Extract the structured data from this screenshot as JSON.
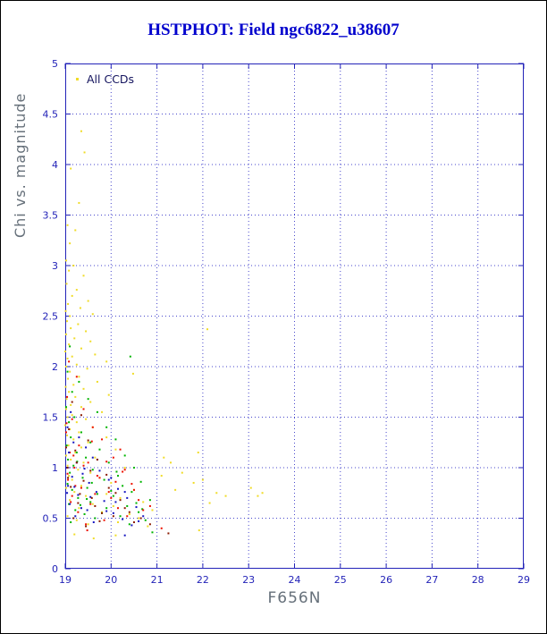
{
  "title": {
    "text": "HSTPHOT: Field ngc6822_u38607",
    "color": "#0000cd"
  },
  "legend": {
    "label": "All CCDs",
    "marker_color": "#f0dc28",
    "text_color": "#14145e"
  },
  "chart_data": {
    "type": "scatter",
    "title": "HSTPHOT: Field ngc6822_u38607",
    "xlabel": "F656N",
    "ylabel": "Chi vs. magnitude",
    "xlim": [
      19,
      29
    ],
    "ylim": [
      0,
      5
    ],
    "x_ticks": [
      19,
      20,
      21,
      22,
      23,
      24,
      25,
      26,
      27,
      28,
      29
    ],
    "y_ticks": [
      0,
      0.5,
      1,
      1.5,
      2,
      2.5,
      3,
      3.5,
      4,
      4.5,
      5
    ],
    "grid": true,
    "axis_color": "#2323b8",
    "grid_color": "#4646cc",
    "tick_label_color": "#2323b8",
    "label_color": "#66707a",
    "legend_position": "top-left",
    "legend_entries": [
      {
        "label": "All CCDs",
        "color": "#f0dc28"
      }
    ],
    "series": [
      {
        "name": "ccd-yellow",
        "color": "#f0dc28",
        "points": [
          [
            19.35,
            4.33
          ],
          [
            19.42,
            4.12
          ],
          [
            19.12,
            3.96
          ],
          [
            19.3,
            3.62
          ],
          [
            19.05,
            3.4
          ],
          [
            19.22,
            3.35
          ],
          [
            19.1,
            3.22
          ],
          [
            19.02,
            3.05
          ],
          [
            19.18,
            3.0
          ],
          [
            19.08,
            2.95
          ],
          [
            19.4,
            2.9
          ],
          [
            19.03,
            2.82
          ],
          [
            19.25,
            2.76
          ],
          [
            19.15,
            2.7
          ],
          [
            19.5,
            2.65
          ],
          [
            19.06,
            2.62
          ],
          [
            19.33,
            2.58
          ],
          [
            19.01,
            2.55
          ],
          [
            19.6,
            2.52
          ],
          [
            19.1,
            2.5
          ],
          [
            19.04,
            2.45
          ],
          [
            19.28,
            2.42
          ],
          [
            19.12,
            2.38
          ],
          [
            22.1,
            2.37
          ],
          [
            19.45,
            2.35
          ],
          [
            19.02,
            2.32
          ],
          [
            19.2,
            2.28
          ],
          [
            19.55,
            2.25
          ],
          [
            19.08,
            2.22
          ],
          [
            19.35,
            2.18
          ],
          [
            19.0,
            2.15
          ],
          [
            19.65,
            2.12
          ],
          [
            19.15,
            2.1
          ],
          [
            19.05,
            2.08
          ],
          [
            19.9,
            2.05
          ],
          [
            19.25,
            2.02
          ],
          [
            19.02,
            2.0
          ],
          [
            19.48,
            1.98
          ],
          [
            19.1,
            1.95
          ],
          [
            20.48,
            1.93
          ],
          [
            19.3,
            1.9
          ],
          [
            19.06,
            1.88
          ],
          [
            19.7,
            1.85
          ],
          [
            19.18,
            1.82
          ],
          [
            19.01,
            1.8
          ],
          [
            19.4,
            1.78
          ],
          [
            19.08,
            1.75
          ],
          [
            19.95,
            1.72
          ],
          [
            19.22,
            1.7
          ],
          [
            19.03,
            1.68
          ],
          [
            19.55,
            1.65
          ],
          [
            19.12,
            1.62
          ],
          [
            19.35,
            1.6
          ],
          [
            19.02,
            1.58
          ],
          [
            19.8,
            1.55
          ],
          [
            19.15,
            1.52
          ],
          [
            19.05,
            1.5
          ],
          [
            19.45,
            1.48
          ],
          [
            19.25,
            1.45
          ],
          [
            19.0,
            1.42
          ],
          [
            19.6,
            1.4
          ],
          [
            19.1,
            1.38
          ],
          [
            19.3,
            1.35
          ],
          [
            19.04,
            1.32
          ],
          [
            19.9,
            1.3
          ],
          [
            19.18,
            1.28
          ],
          [
            19.5,
            1.25
          ],
          [
            19.07,
            1.22
          ],
          [
            19.35,
            1.2
          ],
          [
            20.1,
            1.18
          ],
          [
            19.22,
            1.15
          ],
          [
            19.02,
            1.12
          ],
          [
            19.65,
            1.1
          ],
          [
            19.12,
            1.08
          ],
          [
            19.4,
            1.05
          ],
          [
            19.05,
            1.02
          ],
          [
            20.3,
            1.0
          ],
          [
            19.28,
            0.98
          ],
          [
            19.55,
            0.95
          ],
          [
            19.08,
            0.92
          ],
          [
            19.75,
            0.9
          ],
          [
            19.15,
            0.88
          ],
          [
            20.0,
            0.85
          ],
          [
            19.35,
            0.82
          ],
          [
            19.02,
            0.8
          ],
          [
            20.5,
            0.78
          ],
          [
            19.2,
            0.76
          ],
          [
            19.9,
            0.74
          ],
          [
            19.45,
            0.72
          ],
          [
            20.2,
            0.7
          ],
          [
            19.1,
            0.68
          ],
          [
            20.7,
            0.66
          ],
          [
            19.6,
            0.64
          ],
          [
            20.05,
            0.62
          ],
          [
            19.3,
            0.6
          ],
          [
            20.9,
            0.58
          ],
          [
            19.8,
            0.56
          ],
          [
            20.4,
            0.54
          ],
          [
            19.05,
            0.52
          ],
          [
            20.6,
            0.5
          ],
          [
            19.25,
            0.48
          ],
          [
            20.15,
            0.46
          ],
          [
            19.5,
            0.44
          ],
          [
            20.8,
            0.42
          ],
          [
            19.2,
            0.34
          ],
          [
            20.1,
            0.33
          ],
          [
            19.62,
            0.3
          ],
          [
            21.3,
            1.05
          ],
          [
            21.55,
            0.95
          ],
          [
            21.8,
            0.85
          ],
          [
            22.0,
            0.88
          ],
          [
            22.3,
            0.75
          ],
          [
            22.5,
            0.72
          ],
          [
            23.05,
            0.8
          ],
          [
            23.3,
            0.75
          ],
          [
            21.15,
            1.1
          ],
          [
            21.4,
            0.78
          ],
          [
            22.15,
            0.65
          ],
          [
            21.9,
            1.15
          ],
          [
            21.1,
            0.92
          ],
          [
            23.2,
            0.72
          ],
          [
            21.92,
            0.38
          ]
        ]
      },
      {
        "name": "ccd-green",
        "color": "#00b400",
        "points": [
          [
            19.1,
            2.2
          ],
          [
            20.42,
            2.1
          ],
          [
            19.05,
            1.95
          ],
          [
            19.3,
            1.85
          ],
          [
            19.15,
            1.75
          ],
          [
            19.5,
            1.68
          ],
          [
            19.02,
            1.6
          ],
          [
            19.7,
            1.55
          ],
          [
            19.2,
            1.5
          ],
          [
            19.08,
            1.45
          ],
          [
            19.9,
            1.4
          ],
          [
            19.35,
            1.35
          ],
          [
            19.12,
            1.3
          ],
          [
            20.1,
            1.28
          ],
          [
            19.55,
            1.25
          ],
          [
            19.03,
            1.22
          ],
          [
            19.75,
            1.18
          ],
          [
            19.25,
            1.15
          ],
          [
            20.3,
            1.12
          ],
          [
            19.45,
            1.1
          ],
          [
            19.06,
            1.08
          ],
          [
            19.95,
            1.05
          ],
          [
            19.18,
            1.02
          ],
          [
            20.5,
            1.0
          ],
          [
            19.6,
            0.98
          ],
          [
            19.1,
            0.95
          ],
          [
            20.15,
            0.92
          ],
          [
            19.38,
            0.9
          ],
          [
            19.85,
            0.88
          ],
          [
            20.65,
            0.86
          ],
          [
            19.05,
            0.84
          ],
          [
            20.25,
            0.82
          ],
          [
            19.48,
            0.8
          ],
          [
            19.15,
            0.78
          ],
          [
            20.45,
            0.76
          ],
          [
            19.7,
            0.74
          ],
          [
            20.05,
            0.72
          ],
          [
            19.28,
            0.7
          ],
          [
            20.85,
            0.68
          ],
          [
            19.55,
            0.66
          ],
          [
            19.08,
            0.64
          ],
          [
            20.35,
            0.62
          ],
          [
            19.9,
            0.6
          ],
          [
            19.22,
            0.58
          ],
          [
            20.6,
            0.56
          ],
          [
            19.42,
            0.54
          ],
          [
            20.2,
            0.52
          ],
          [
            19.65,
            0.5
          ],
          [
            20.75,
            0.48
          ],
          [
            19.12,
            0.46
          ],
          [
            20.4,
            0.44
          ],
          [
            19.8,
            0.55
          ],
          [
            20.55,
            0.65
          ],
          [
            19.33,
            0.63
          ],
          [
            20.0,
            0.77
          ],
          [
            19.58,
            0.85
          ],
          [
            20.12,
            0.96
          ],
          [
            19.26,
            1.06
          ],
          [
            20.68,
            0.59
          ],
          [
            19.47,
            0.69
          ],
          [
            20.9,
            0.36
          ]
        ]
      },
      {
        "name": "ccd-red",
        "color": "#ee1100",
        "points": [
          [
            19.08,
            2.05
          ],
          [
            19.25,
            1.9
          ],
          [
            19.04,
            1.7
          ],
          [
            19.4,
            1.58
          ],
          [
            19.15,
            1.48
          ],
          [
            19.6,
            1.4
          ],
          [
            19.02,
            1.35
          ],
          [
            19.8,
            1.28
          ],
          [
            19.3,
            1.22
          ],
          [
            19.1,
            1.15
          ],
          [
            20.05,
            1.1
          ],
          [
            19.5,
            1.05
          ],
          [
            19.2,
            1.0
          ],
          [
            20.25,
            0.96
          ],
          [
            19.7,
            0.92
          ],
          [
            19.06,
            0.88
          ],
          [
            20.45,
            0.84
          ],
          [
            19.35,
            0.8
          ],
          [
            19.95,
            0.76
          ],
          [
            19.15,
            0.72
          ],
          [
            20.6,
            0.68
          ],
          [
            19.55,
            0.64
          ],
          [
            20.15,
            0.6
          ],
          [
            19.28,
            0.56
          ],
          [
            20.35,
            0.52
          ],
          [
            19.85,
            0.48
          ],
          [
            19.45,
            0.44
          ],
          [
            20.7,
            0.58
          ],
          [
            19.12,
            0.66
          ],
          [
            20.0,
            0.7
          ],
          [
            19.65,
            0.74
          ],
          [
            20.5,
            0.78
          ],
          [
            19.22,
            0.82
          ],
          [
            20.1,
            0.86
          ],
          [
            19.75,
            0.9
          ],
          [
            19.05,
            0.94
          ],
          [
            20.3,
            0.98
          ],
          [
            19.4,
            1.02
          ],
          [
            19.9,
            1.06
          ],
          [
            19.18,
            1.12
          ],
          [
            20.2,
            1.18
          ],
          [
            19.58,
            1.26
          ],
          [
            19.03,
            1.44
          ],
          [
            19.48,
            0.38
          ],
          [
            20.85,
            0.62
          ],
          [
            21.1,
            0.4
          ]
        ]
      },
      {
        "name": "ccd-blue",
        "color": "#1515c0",
        "points": [
          [
            19.12,
            1.55
          ],
          [
            19.05,
            1.4
          ],
          [
            19.3,
            1.3
          ],
          [
            19.18,
            1.25
          ],
          [
            19.45,
            1.2
          ],
          [
            19.08,
            1.15
          ],
          [
            19.6,
            1.1
          ],
          [
            19.25,
            1.05
          ],
          [
            19.02,
            1.0
          ],
          [
            19.75,
            0.97
          ],
          [
            19.38,
            0.94
          ],
          [
            19.15,
            0.91
          ],
          [
            19.95,
            0.88
          ],
          [
            19.52,
            0.85
          ],
          [
            19.06,
            0.82
          ],
          [
            20.15,
            0.79
          ],
          [
            19.68,
            0.76
          ],
          [
            19.28,
            0.73
          ],
          [
            20.35,
            0.7
          ],
          [
            19.85,
            0.67
          ],
          [
            19.1,
            0.64
          ],
          [
            20.55,
            0.61
          ],
          [
            19.48,
            0.58
          ],
          [
            20.05,
            0.55
          ],
          [
            19.22,
            0.52
          ],
          [
            20.25,
            0.49
          ],
          [
            19.62,
            0.46
          ],
          [
            20.45,
            0.43
          ],
          [
            19.35,
            0.6
          ],
          [
            20.7,
            0.52
          ],
          [
            19.9,
            0.57
          ],
          [
            20.1,
            0.66
          ],
          [
            19.55,
            0.71
          ],
          [
            20.3,
            0.76
          ],
          [
            19.2,
            0.81
          ],
          [
            20.0,
            0.9
          ],
          [
            19.42,
            0.99
          ],
          [
            19.7,
            1.08
          ],
          [
            20.6,
            0.47
          ],
          [
            19.04,
            0.75
          ],
          [
            20.3,
            0.33
          ]
        ]
      },
      {
        "name": "ccd-darkred",
        "color": "#8b1a00",
        "points": [
          [
            19.15,
            1.65
          ],
          [
            19.35,
            1.52
          ],
          [
            19.08,
            1.38
          ],
          [
            19.5,
            1.27
          ],
          [
            19.22,
            1.17
          ],
          [
            19.7,
            1.08
          ],
          [
            19.05,
            1.0
          ],
          [
            19.9,
            0.93
          ],
          [
            19.4,
            0.87
          ],
          [
            19.12,
            0.81
          ],
          [
            20.1,
            0.75
          ],
          [
            19.58,
            0.7
          ],
          [
            19.28,
            0.65
          ],
          [
            20.3,
            0.6
          ],
          [
            19.8,
            0.55
          ],
          [
            19.18,
            0.5
          ],
          [
            20.5,
            0.46
          ],
          [
            19.45,
            0.42
          ],
          [
            20.05,
            0.52
          ],
          [
            19.65,
            0.62
          ],
          [
            20.2,
            0.68
          ],
          [
            19.32,
            0.74
          ],
          [
            19.95,
            0.8
          ],
          [
            19.06,
            0.9
          ],
          [
            20.4,
            0.56
          ],
          [
            19.55,
            0.97
          ],
          [
            20.65,
            0.5
          ],
          [
            19.25,
            1.05
          ],
          [
            20.85,
            0.44
          ],
          [
            19.75,
            0.47
          ],
          [
            21.25,
            0.35
          ],
          [
            19.02,
            1.2
          ]
        ]
      }
    ]
  }
}
